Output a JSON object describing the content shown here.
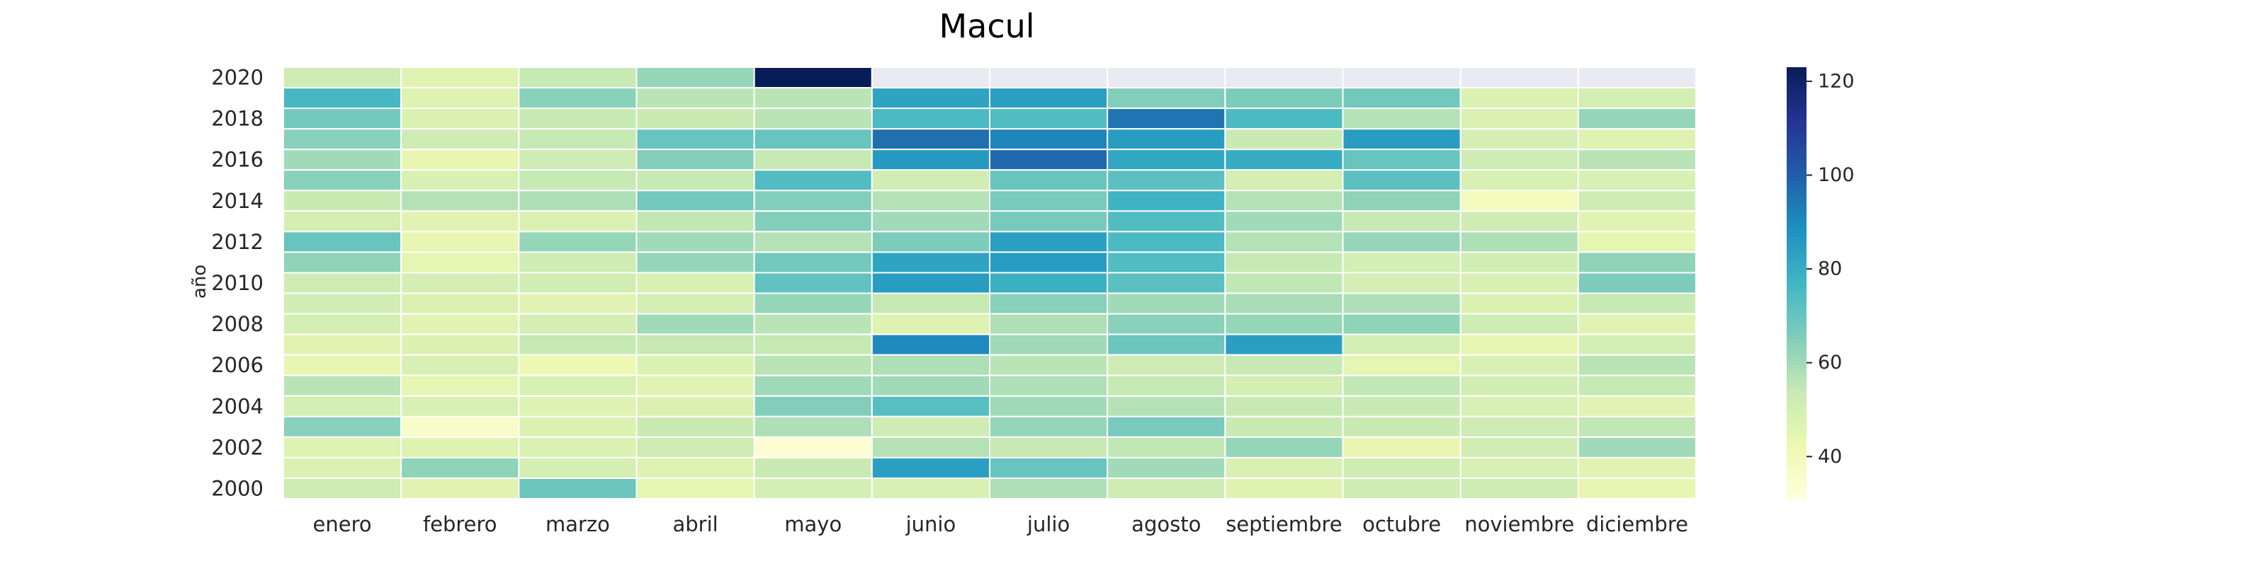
{
  "chart_data": {
    "type": "heatmap",
    "title": "Macul",
    "xlabel": "",
    "ylabel": "año",
    "categories": [
      "enero",
      "febrero",
      "marzo",
      "abril",
      "mayo",
      "junio",
      "julio",
      "agosto",
      "septiembre",
      "octubre",
      "noviembre",
      "diciembre"
    ],
    "years": [
      2020,
      2019,
      2018,
      2017,
      2016,
      2015,
      2014,
      2013,
      2012,
      2011,
      2010,
      2009,
      2008,
      2007,
      2006,
      2005,
      2004,
      2003,
      2002,
      2001,
      2000
    ],
    "y_tick_labels": [
      "2020",
      "2018",
      "2016",
      "2014",
      "2012",
      "2010",
      "2008",
      "2006",
      "2004",
      "2002",
      "2000"
    ],
    "values": [
      [
        52,
        46,
        54,
        62,
        123,
        null,
        null,
        null,
        null,
        null,
        null,
        null
      ],
      [
        76,
        47,
        64,
        56,
        56,
        83,
        84,
        65,
        66,
        68,
        48,
        50
      ],
      [
        68,
        48,
        54,
        53,
        56,
        75,
        74,
        95,
        75,
        57,
        48,
        62
      ],
      [
        64,
        52,
        54,
        70,
        70,
        96,
        91,
        85,
        53,
        85,
        50,
        47
      ],
      [
        60,
        44,
        52,
        65,
        54,
        86,
        98,
        82,
        80,
        70,
        52,
        56
      ],
      [
        64,
        49,
        54,
        54,
        74,
        51,
        70,
        72,
        50,
        72,
        49,
        49
      ],
      [
        53,
        57,
        58,
        68,
        65,
        57,
        67,
        78,
        57,
        63,
        39,
        52
      ],
      [
        50,
        46,
        48,
        55,
        65,
        60,
        67,
        74,
        60,
        54,
        52,
        46
      ],
      [
        70,
        44,
        62,
        60,
        57,
        66,
        84,
        75,
        57,
        62,
        58,
        45
      ],
      [
        63,
        45,
        52,
        62,
        68,
        83,
        85,
        74,
        54,
        50,
        51,
        63
      ],
      [
        52,
        50,
        51,
        49,
        71,
        85,
        79,
        72,
        55,
        50,
        49,
        66
      ],
      [
        51,
        48,
        46,
        50,
        62,
        54,
        64,
        60,
        59,
        58,
        48,
        54
      ],
      [
        50,
        46,
        50,
        60,
        56,
        47,
        58,
        64,
        62,
        63,
        52,
        46
      ],
      [
        46,
        48,
        54,
        54,
        54,
        90,
        60,
        69,
        84,
        50,
        44,
        50
      ],
      [
        44,
        49,
        42,
        48,
        56,
        58,
        56,
        52,
        54,
        45,
        49,
        56
      ],
      [
        56,
        45,
        49,
        46,
        60,
        60,
        58,
        54,
        50,
        55,
        51,
        54
      ],
      [
        50,
        49,
        47,
        48,
        65,
        73,
        60,
        57,
        54,
        53,
        49,
        46
      ],
      [
        64,
        36,
        48,
        53,
        58,
        52,
        62,
        67,
        53,
        53,
        52,
        55
      ],
      [
        47,
        47,
        48,
        52,
        33,
        57,
        54,
        55,
        62,
        44,
        51,
        60
      ],
      [
        48,
        63,
        50,
        47,
        53,
        84,
        70,
        60,
        49,
        52,
        49,
        46
      ],
      [
        52,
        46,
        69,
        45,
        50,
        49,
        58,
        52,
        47,
        52,
        52,
        44
      ]
    ],
    "missing_color": "#eaeaf2",
    "colormap": "YlGnBu",
    "colorbar": {
      "min": 31,
      "max": 123,
      "ticks": [
        40,
        60,
        80,
        100,
        120
      ]
    },
    "grid": false
  }
}
